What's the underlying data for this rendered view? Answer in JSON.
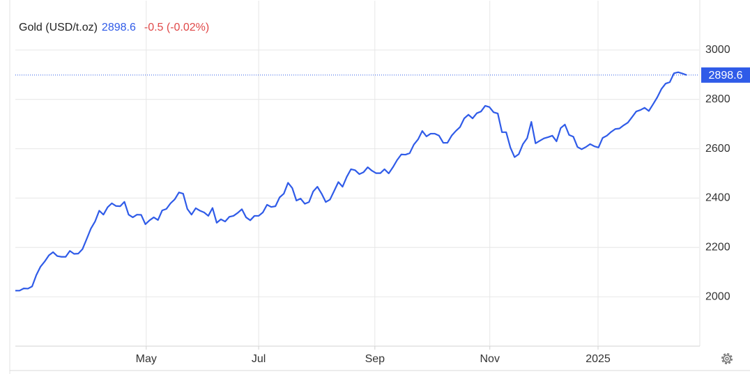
{
  "chart_data": {
    "type": "line",
    "title": "Gold (USD/t.oz)",
    "last_value": 2898.6,
    "change_label": "-0.5 (-0.02%)",
    "color": "#2f5be8",
    "grid": true,
    "ylim": [
      1800,
      3200
    ],
    "yticks": [
      2000,
      2200,
      2400,
      2600,
      2800,
      3000
    ],
    "xlim": [
      0,
      160
    ],
    "xticks": [
      {
        "value": 31.2,
        "label": "May"
      },
      {
        "value": 58.0,
        "label": "Jul"
      },
      {
        "value": 85.7,
        "label": "Sep"
      },
      {
        "value": 113.1,
        "label": "Nov"
      },
      {
        "value": 138.9,
        "label": "2025"
      }
    ],
    "values": [
      2025,
      2025,
      2034,
      2033,
      2042,
      2088,
      2122,
      2143,
      2168,
      2181,
      2165,
      2162,
      2162,
      2186,
      2174,
      2175,
      2193,
      2234,
      2276,
      2305,
      2349,
      2333,
      2363,
      2379,
      2368,
      2367,
      2385,
      2333,
      2322,
      2333,
      2332,
      2294,
      2310,
      2322,
      2311,
      2350,
      2356,
      2379,
      2395,
      2423,
      2418,
      2356,
      2333,
      2359,
      2349,
      2342,
      2328,
      2360,
      2300,
      2314,
      2305,
      2324,
      2328,
      2340,
      2355,
      2322,
      2310,
      2328,
      2328,
      2342,
      2373,
      2364,
      2367,
      2403,
      2418,
      2462,
      2441,
      2390,
      2398,
      2377,
      2384,
      2427,
      2446,
      2418,
      2384,
      2394,
      2429,
      2465,
      2446,
      2486,
      2517,
      2513,
      2497,
      2505,
      2525,
      2511,
      2501,
      2501,
      2517,
      2500,
      2525,
      2554,
      2577,
      2576,
      2582,
      2617,
      2638,
      2672,
      2650,
      2661,
      2661,
      2653,
      2624,
      2624,
      2653,
      2672,
      2688,
      2723,
      2738,
      2723,
      2744,
      2751,
      2774,
      2769,
      2748,
      2743,
      2667,
      2667,
      2605,
      2566,
      2578,
      2619,
      2643,
      2709,
      2622,
      2632,
      2642,
      2647,
      2653,
      2630,
      2684,
      2698,
      2656,
      2649,
      2607,
      2598,
      2607,
      2619,
      2610,
      2605,
      2644,
      2653,
      2668,
      2680,
      2682,
      2695,
      2706,
      2728,
      2751,
      2757,
      2766,
      2753,
      2780,
      2808,
      2842,
      2864,
      2870,
      2906,
      2910,
      2905,
      2898.6
    ]
  }
}
